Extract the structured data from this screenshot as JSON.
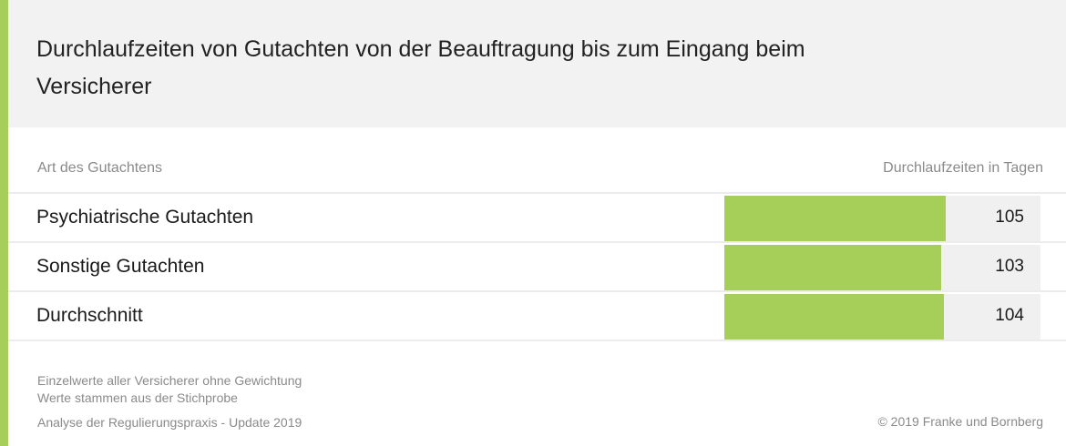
{
  "colors": {
    "accent": "#a6cf5a",
    "track": "#f0f0f0"
  },
  "chart_data": {
    "type": "bar",
    "title": "Durchlaufzeiten von Gutachten von der Beauftragung bis zum Eingang beim Versicherer",
    "xlabel": "Art des Gutachtens",
    "ylabel": "Durchlaufzeiten in Tagen",
    "categories": [
      "Psychiatrische Gutachten",
      "Sonstige Gutachten",
      "Durchschnitt"
    ],
    "values": [
      105,
      103,
      104
    ],
    "ylim": [
      0,
      150
    ]
  },
  "notes": [
    "Einzelwerte aller Versicherer ohne Gewichtung",
    "Werte stammen aus der Stichprobe",
    "Analyse der Regulierungspraxis - Update 2019"
  ],
  "copyright": "© 2019 Franke und Bornberg"
}
